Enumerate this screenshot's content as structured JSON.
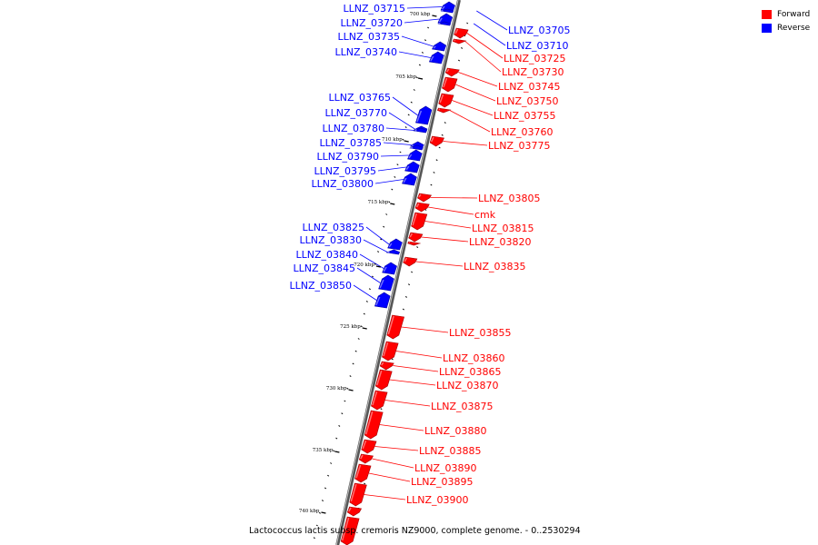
{
  "legend": {
    "forward_label": "Forward",
    "reverse_label": "Reverse",
    "forward_color": "#ff0000",
    "reverse_color": "#0000ff"
  },
  "caption": "Lactococcus lactis subsp. cremoris NZ9000, complete genome. - 0..2530294",
  "axis_ticks": [
    "700 kbp",
    "705 kbp",
    "710 kbp",
    "715 kbp",
    "720 kbp",
    "725 kbp",
    "730 kbp",
    "735 kbp",
    "740 kbp"
  ],
  "genes": [
    {
      "name": "LLNZ_03715",
      "strand": "reverse"
    },
    {
      "name": "LLNZ_03720",
      "strand": "reverse"
    },
    {
      "name": "LLNZ_03735",
      "strand": "reverse"
    },
    {
      "name": "LLNZ_03740",
      "strand": "reverse"
    },
    {
      "name": "LLNZ_03765",
      "strand": "reverse"
    },
    {
      "name": "LLNZ_03770",
      "strand": "reverse"
    },
    {
      "name": "LLNZ_03780",
      "strand": "reverse"
    },
    {
      "name": "LLNZ_03785",
      "strand": "reverse"
    },
    {
      "name": "LLNZ_03790",
      "strand": "reverse"
    },
    {
      "name": "LLNZ_03795",
      "strand": "reverse"
    },
    {
      "name": "LLNZ_03800",
      "strand": "reverse"
    },
    {
      "name": "LLNZ_03825",
      "strand": "reverse"
    },
    {
      "name": "LLNZ_03830",
      "strand": "reverse"
    },
    {
      "name": "LLNZ_03840",
      "strand": "reverse"
    },
    {
      "name": "LLNZ_03845",
      "strand": "reverse"
    },
    {
      "name": "LLNZ_03850",
      "strand": "reverse"
    },
    {
      "name": "LLNZ_03705",
      "strand": "reverse"
    },
    {
      "name": "LLNZ_03710",
      "strand": "reverse"
    },
    {
      "name": "LLNZ_03725",
      "strand": "forward"
    },
    {
      "name": "LLNZ_03730",
      "strand": "forward"
    },
    {
      "name": "LLNZ_03745",
      "strand": "forward"
    },
    {
      "name": "LLNZ_03750",
      "strand": "forward"
    },
    {
      "name": "LLNZ_03755",
      "strand": "forward"
    },
    {
      "name": "LLNZ_03760",
      "strand": "forward"
    },
    {
      "name": "LLNZ_03775",
      "strand": "forward"
    },
    {
      "name": "LLNZ_03805",
      "strand": "forward"
    },
    {
      "name": "cmk",
      "strand": "forward"
    },
    {
      "name": "LLNZ_03815",
      "strand": "forward"
    },
    {
      "name": "LLNZ_03820",
      "strand": "forward"
    },
    {
      "name": "LLNZ_03835",
      "strand": "forward"
    },
    {
      "name": "LLNZ_03855",
      "strand": "forward"
    },
    {
      "name": "LLNZ_03860",
      "strand": "forward"
    },
    {
      "name": "LLNZ_03865",
      "strand": "forward"
    },
    {
      "name": "LLNZ_03870",
      "strand": "forward"
    },
    {
      "name": "LLNZ_03875",
      "strand": "forward"
    },
    {
      "name": "LLNZ_03880",
      "strand": "forward"
    },
    {
      "name": "LLNZ_03885",
      "strand": "forward"
    },
    {
      "name": "LLNZ_03890",
      "strand": "forward"
    },
    {
      "name": "LLNZ_03895",
      "strand": "forward"
    },
    {
      "name": "LLNZ_03900",
      "strand": "forward"
    }
  ]
}
